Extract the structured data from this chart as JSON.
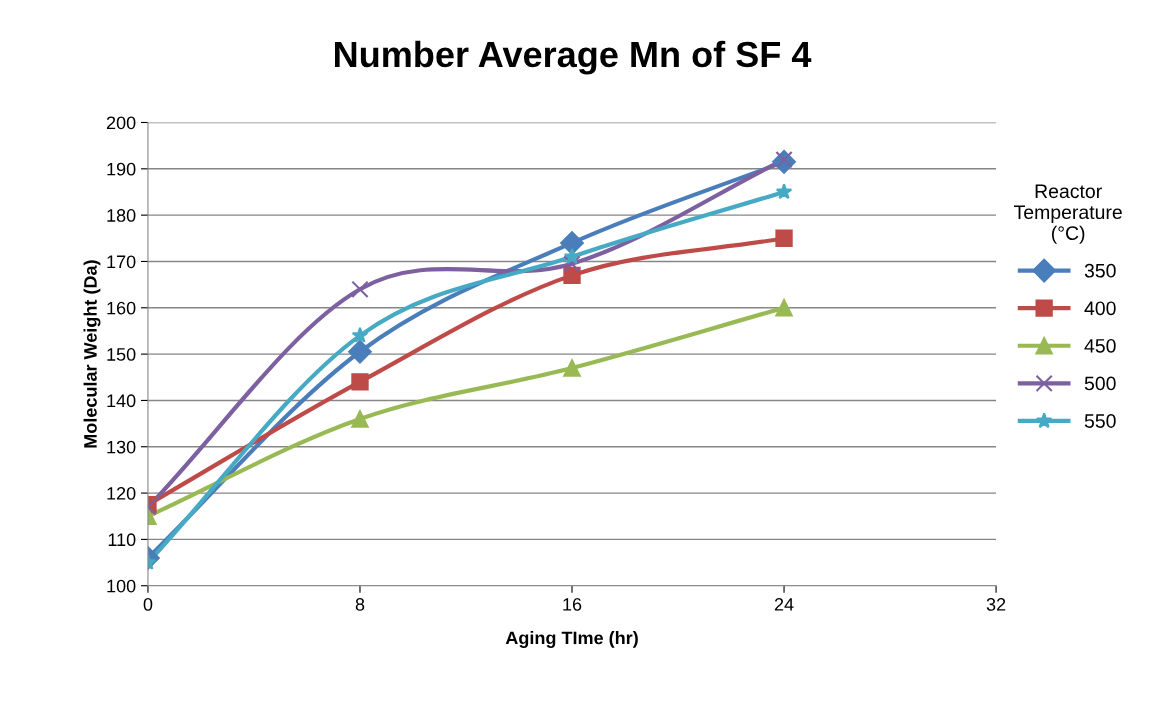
{
  "chart_data": {
    "type": "line",
    "title": "Number Average Mn of SF 4",
    "xlabel": "Aging TIme (hr)",
    "ylabel": "Molecular Weight (Da)",
    "legend_title": "Reactor\nTemperature\n(°C)",
    "x": [
      0,
      8,
      16,
      24
    ],
    "xlim": [
      0,
      32
    ],
    "xticks": [
      0,
      8,
      16,
      24,
      32
    ],
    "ylim": [
      100,
      200
    ],
    "yticks": [
      100,
      110,
      120,
      130,
      140,
      150,
      160,
      170,
      180,
      190,
      200
    ],
    "grid": "y",
    "legend": "right",
    "line_style": "solid",
    "series": [
      {
        "name": "350",
        "color": "#4a7ebb",
        "marker": "diamond",
        "values": [
          106,
          150.5,
          174,
          191.5
        ]
      },
      {
        "name": "400",
        "color": "#be4b48",
        "marker": "square",
        "values": [
          117.5,
          144,
          167,
          175
        ]
      },
      {
        "name": "450",
        "color": "#98b954",
        "marker": "triangle",
        "values": [
          115,
          136,
          147,
          160
        ]
      },
      {
        "name": "500",
        "color": "#7d60a0",
        "marker": "cross",
        "values": [
          117,
          164,
          169.5,
          192
        ]
      },
      {
        "name": "550",
        "color": "#46aac5",
        "marker": "star",
        "values": [
          105,
          154,
          171,
          185
        ]
      }
    ]
  }
}
